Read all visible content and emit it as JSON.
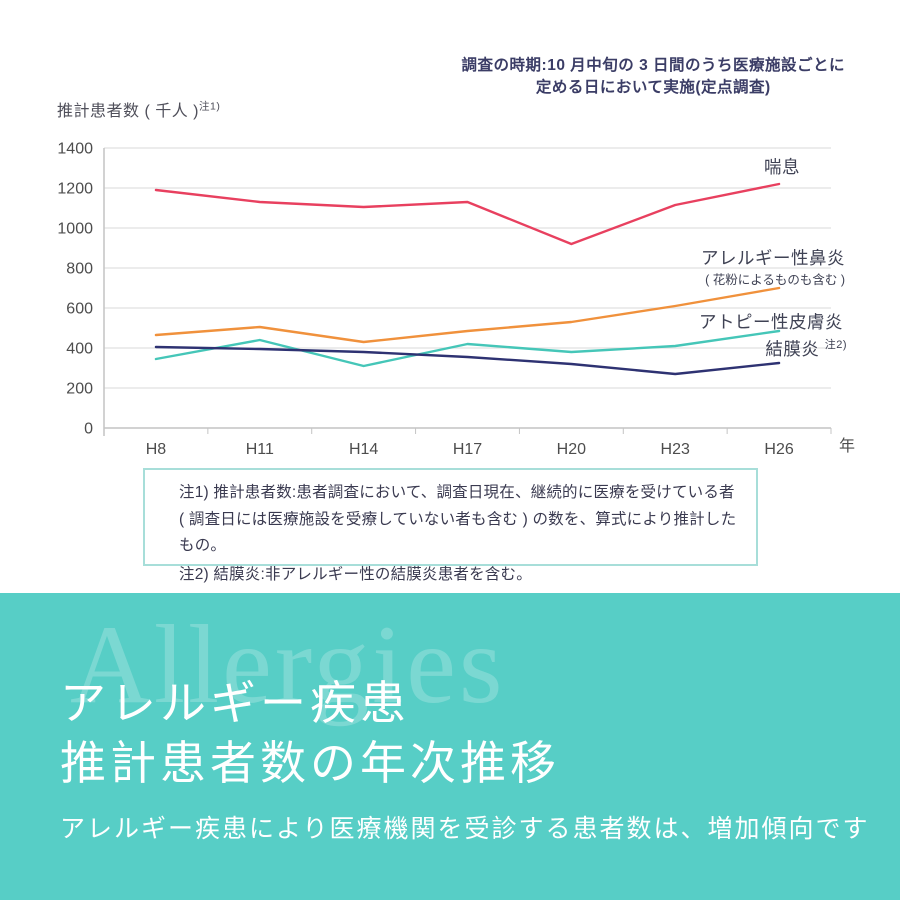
{
  "annotation": {
    "line1": "調査の時期:10 月中旬の 3 日間のうち医療施設ごとに",
    "line2": "定める日において実施(定点調査)"
  },
  "chart_data": {
    "type": "line",
    "ylabel": "推計患者数 ( 千人 )",
    "ylabel_note": "注1)",
    "xlabel": "年",
    "categories": [
      "H8",
      "H11",
      "H14",
      "H17",
      "H20",
      "H23",
      "H26"
    ],
    "ylim": [
      0,
      1400
    ],
    "ytick_step": 200,
    "grid": true,
    "legend_position": "line-end-right",
    "series": [
      {
        "name": "喘息",
        "color": "#e8405f",
        "values": [
          1190,
          1130,
          1105,
          1130,
          920,
          1115,
          1220
        ]
      },
      {
        "name": "アレルギー性鼻炎",
        "subname": "( 花粉によるものも含む )",
        "color": "#f0913c",
        "values": [
          465,
          505,
          430,
          485,
          530,
          610,
          700
        ]
      },
      {
        "name": "アトピー性皮膚炎",
        "color": "#45c6b8",
        "values": [
          345,
          440,
          310,
          420,
          380,
          410,
          485
        ]
      },
      {
        "name": "結膜炎",
        "sup": "注2)",
        "color": "#2e3272",
        "values": [
          405,
          395,
          380,
          355,
          320,
          270,
          325
        ]
      }
    ],
    "axis_color": "#c4c4c4",
    "grid_color": "#e0e0e0",
    "tick_label_color": "#4d4d4d"
  },
  "notes": {
    "line1": "注1) 推計患者数:患者調査において、調査日現在、継続的に医療を受けている者",
    "line2": "( 調査日には医療施設を受療していない者も含む ) の数を、算式により推計したもの。",
    "line3": "注2) 結膜炎:非アレルギー性の結膜炎患者を含む。"
  },
  "banner": {
    "watermark": "Allergies",
    "title_line1": "アレルギー疾患",
    "title_line2": "推計患者数の年次推移",
    "subtitle": "アレルギー疾患により医療機関を受診する患者数は、増加傾向です",
    "bg_color": "#57cec6"
  }
}
